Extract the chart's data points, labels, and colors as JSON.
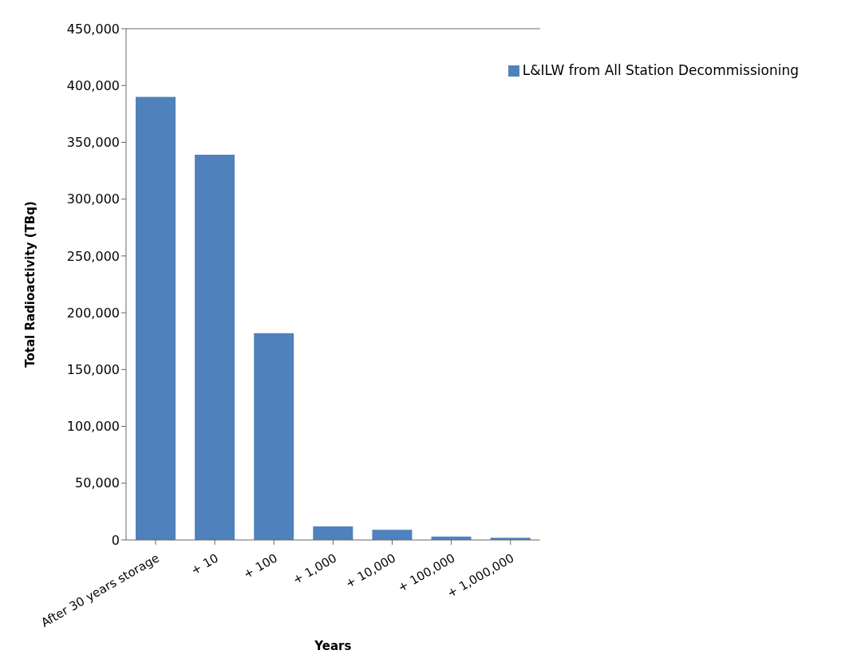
{
  "chart_data": {
    "type": "bar",
    "xlabel": "Years",
    "ylabel": "Total Radioactivity  (TBq)",
    "categories": [
      "After 30 years storage",
      "+ 10",
      "+ 100",
      "+ 1,000",
      "+ 10,000",
      "+ 100,000",
      "+ 1,000,000"
    ],
    "series": [
      {
        "name": "L&ILW from All Station Decommissioning",
        "color": "#4f81bd",
        "values": [
          390000,
          339000,
          182000,
          12000,
          9000,
          3000,
          2000
        ]
      }
    ],
    "ylim": [
      0,
      450000
    ],
    "yticks": [
      {
        "value": 0,
        "label": "0"
      },
      {
        "value": 50000,
        "label": "50,000"
      },
      {
        "value": 100000,
        "label": "100,000"
      },
      {
        "value": 150000,
        "label": "150,000"
      },
      {
        "value": 200000,
        "label": "200,000"
      },
      {
        "value": 250000,
        "label": "250,000"
      },
      {
        "value": 300000,
        "label": "300,000"
      },
      {
        "value": 350000,
        "label": "350,000"
      },
      {
        "value": 400000,
        "label": "400,000"
      },
      {
        "value": 450000,
        "label": "450,000"
      }
    ],
    "grid": false,
    "legend": "top right"
  }
}
